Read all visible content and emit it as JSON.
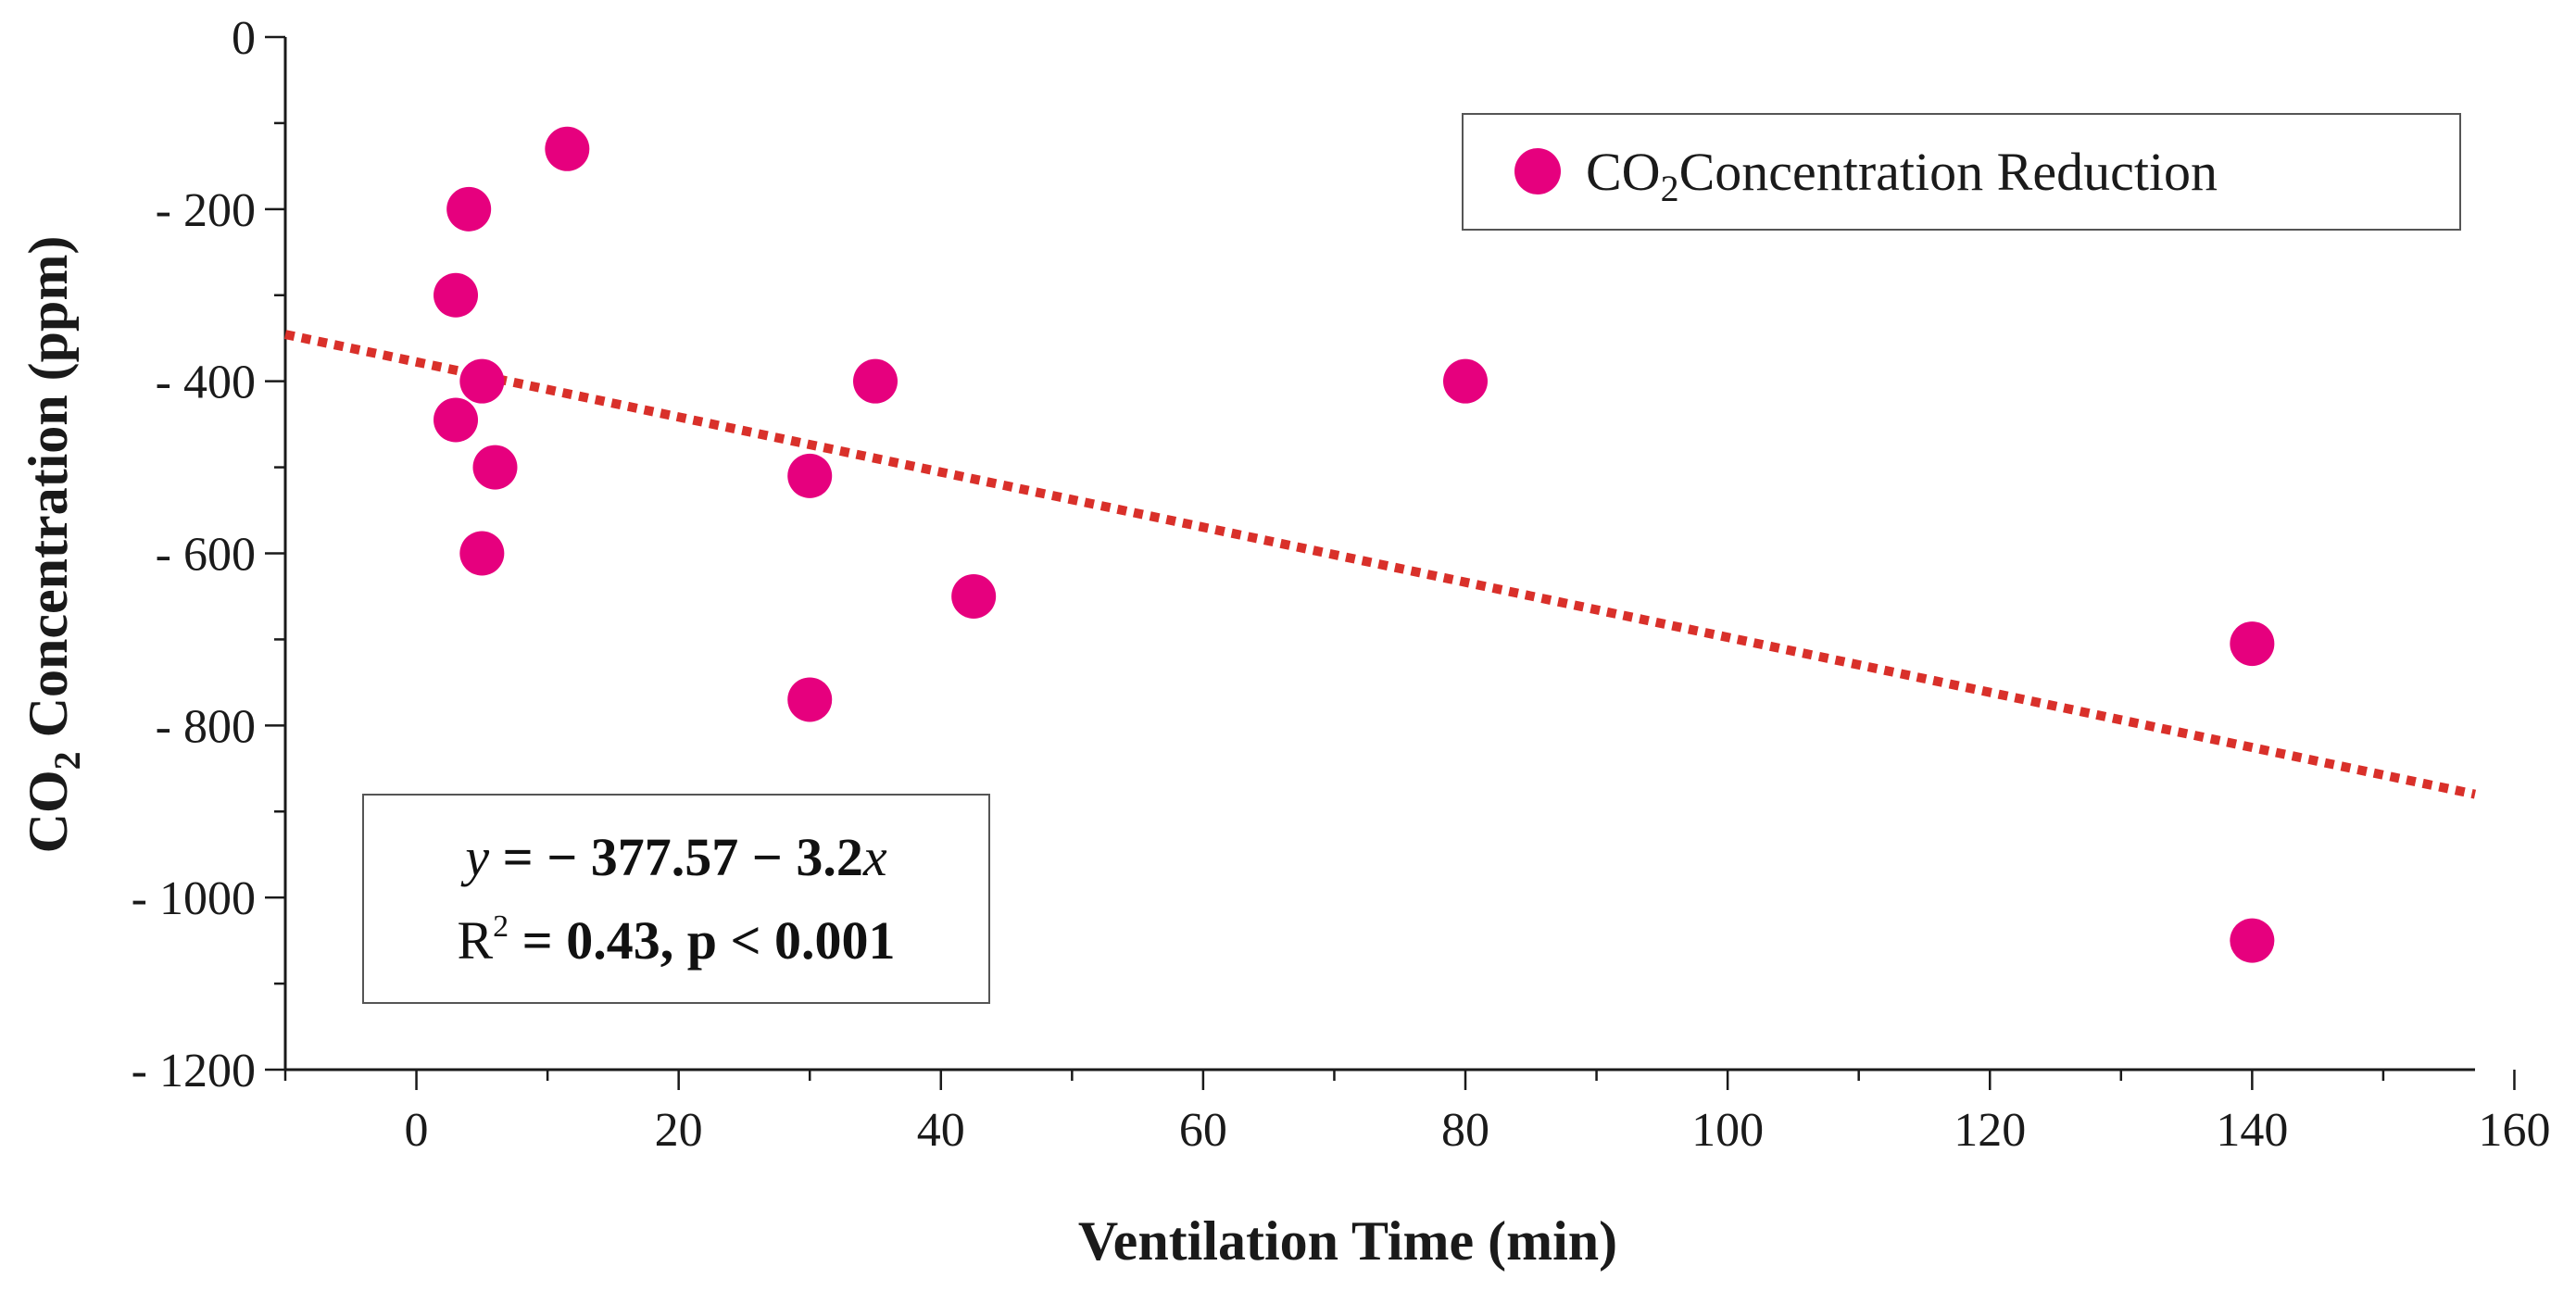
{
  "colors": {
    "point": "#e6007e",
    "trend": "#d9302a",
    "axis": "#1a1a1a",
    "text": "#1a1a1a"
  },
  "chart_data": {
    "type": "scatter",
    "xlabel": "Ventilation Time (min)",
    "ylabel": {
      "prefix": "CO",
      "sub": "2",
      "rest": " Concentration (ppm)"
    },
    "xlim": [
      -10,
      157
    ],
    "ylim": [
      -1200,
      0
    ],
    "x_ticks": [
      0,
      20,
      40,
      60,
      80,
      100,
      120,
      140,
      160
    ],
    "x_tick_labels": [
      "0",
      "20",
      "40",
      "60",
      "80",
      "100",
      "120",
      "140",
      "160"
    ],
    "x_minor_step": 10,
    "y_ticks": [
      0,
      -200,
      -400,
      -600,
      -800,
      -1000,
      -1200
    ],
    "y_tick_labels": [
      "0",
      "- 200",
      "- 400",
      "- 600",
      "- 800",
      "- 1000",
      "- 1200"
    ],
    "y_minor_step": 100,
    "grid": false,
    "series": [
      {
        "name": {
          "prefix": "CO",
          "sub": "2",
          "rest": "Concentration Reduction"
        },
        "points": [
          {
            "x": 3,
            "y": -300
          },
          {
            "x": 3,
            "y": -445
          },
          {
            "x": 4,
            "y": -200
          },
          {
            "x": 5,
            "y": -400
          },
          {
            "x": 5,
            "y": -600
          },
          {
            "x": 6,
            "y": -500
          },
          {
            "x": 11.5,
            "y": -130
          },
          {
            "x": 30,
            "y": -510
          },
          {
            "x": 30,
            "y": -770
          },
          {
            "x": 35,
            "y": -400
          },
          {
            "x": 42.5,
            "y": -650
          },
          {
            "x": 80,
            "y": -400
          },
          {
            "x": 140,
            "y": -705
          },
          {
            "x": 140,
            "y": -1050
          }
        ]
      }
    ],
    "trendline": {
      "intercept": -377.57,
      "slope": -3.2,
      "x_range": [
        -10,
        157
      ],
      "style": "dotted"
    },
    "legend_position": "top-right",
    "annotation": {
      "equation": {
        "y": "y",
        "body": " = − 377.57 − 3.2",
        "x": "x"
      },
      "stats": {
        "r": "R",
        "r_sup": "2",
        "rest": " = 0.43, p < 0.001"
      }
    }
  }
}
